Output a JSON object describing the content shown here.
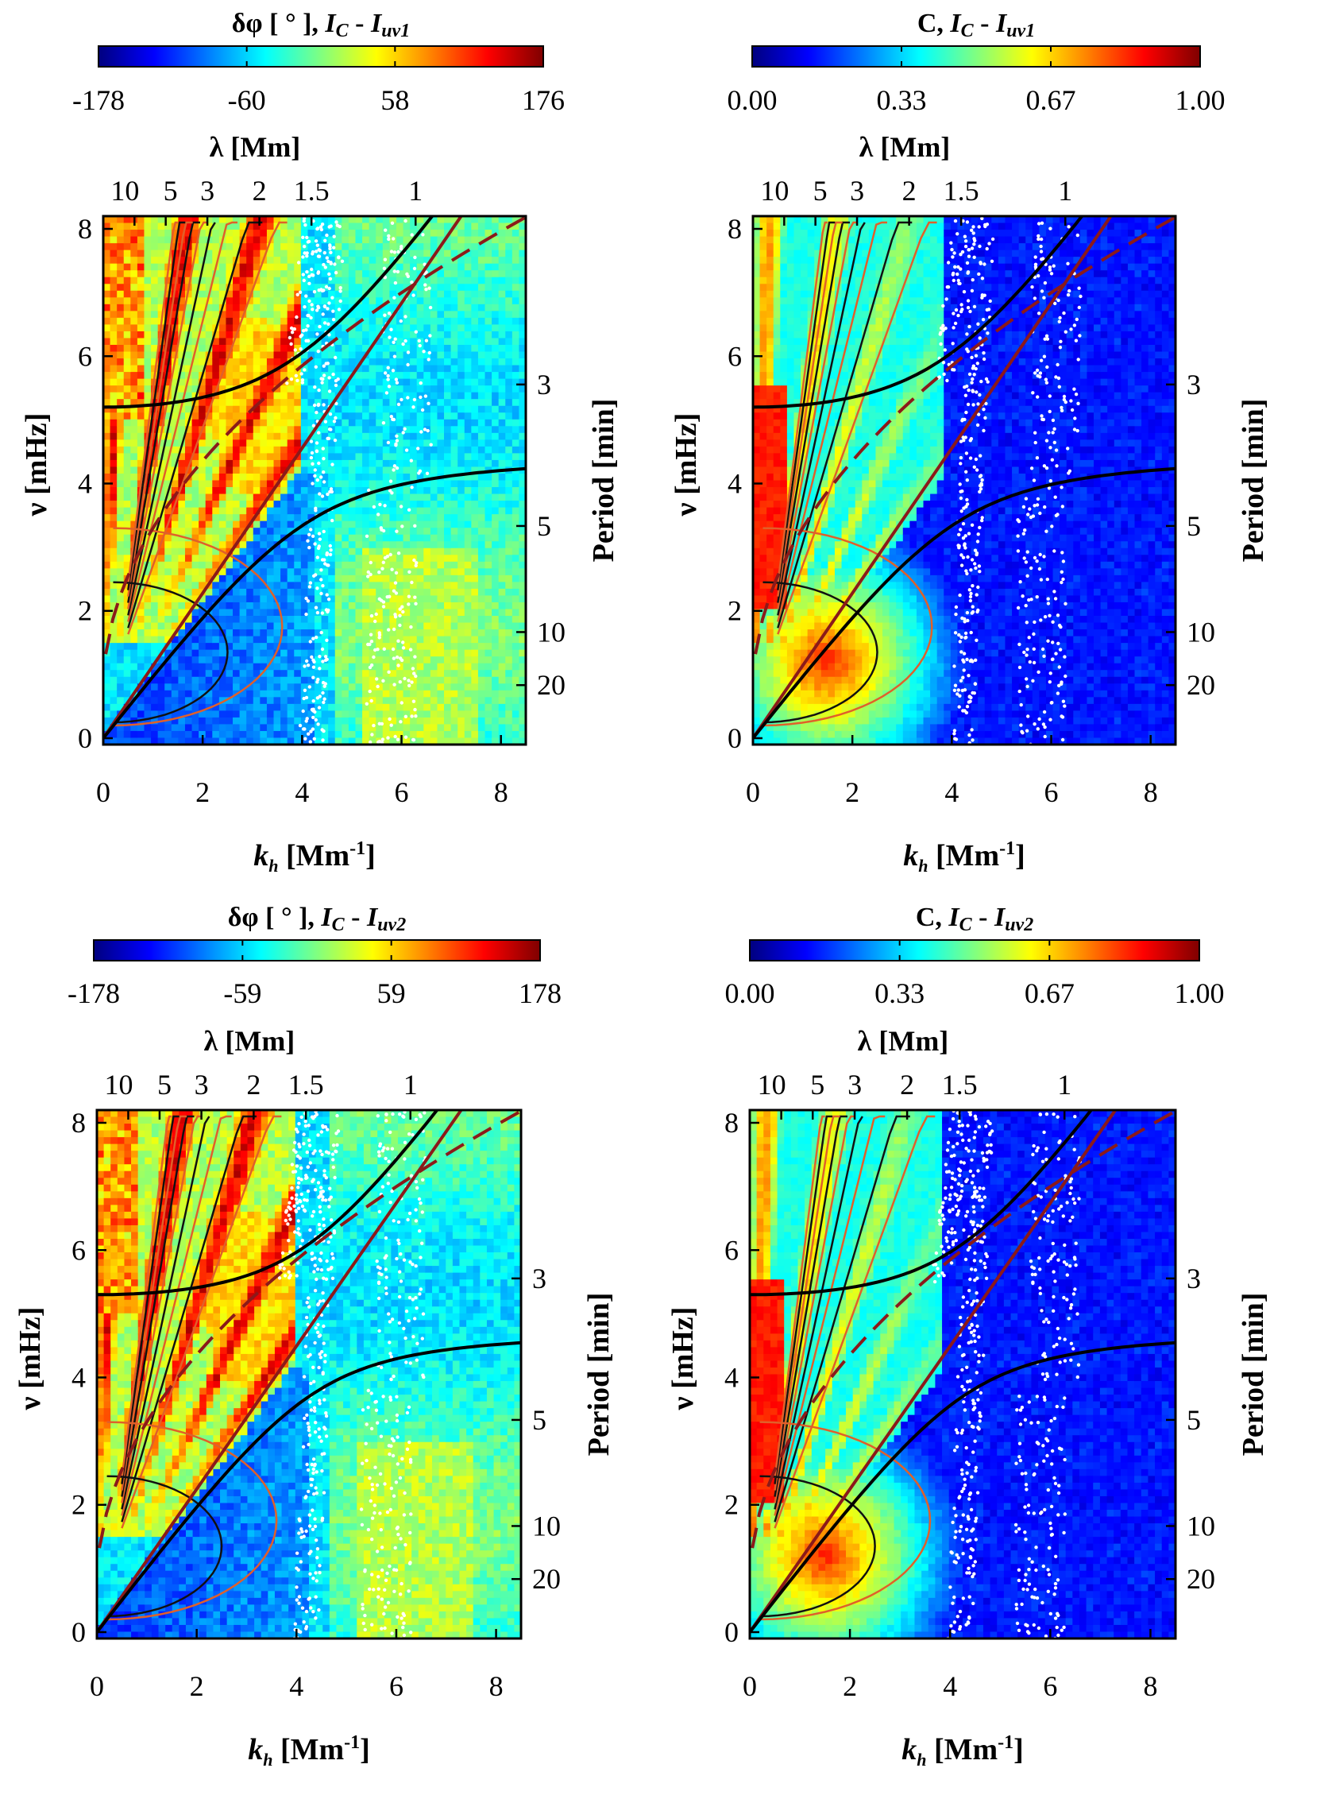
{
  "figure": {
    "description_panels": 4
  },
  "colors": {
    "jet_stops": [
      "#00007f",
      "#0000ff",
      "#0080ff",
      "#00ffff",
      "#80ff80",
      "#ffff00",
      "#ff8000",
      "#ff0000",
      "#7f0000"
    ],
    "contour_black": "#111111",
    "contour_orange": "#e0602a",
    "contour_white": "#ffffff",
    "dispersion_black": "#000000",
    "dispersion_red": "#8b1a1a"
  },
  "chart_data": [
    {
      "id": "top-left",
      "type": "heatmap",
      "quantity": "phase",
      "colorbar": {
        "title_main": "δφ [ ° ],",
        "title_pair_base": "I",
        "title_pair_sub1": "C",
        "title_pair_sep": " - ",
        "title_pair_base2": "I",
        "title_pair_sub2": "uv1",
        "ticks": [
          "-178",
          "-60",
          "58",
          "176"
        ],
        "range": [
          -178,
          176
        ]
      },
      "xlabel_base": "k",
      "xlabel_sub": "h",
      "xlabel_unit": "[Mm",
      "xlabel_exp": "-1",
      "xlabel_close": "]",
      "ylabel": "ν [mHz]",
      "toplabel": "λ [Mm]",
      "rightlabel": "Period [min]",
      "xlim": [
        0,
        8.5
      ],
      "ylim": [
        -0.1,
        8.2
      ],
      "xticks": [
        "0",
        "2",
        "4",
        "6",
        "8"
      ],
      "yticks": [
        "0",
        "2",
        "4",
        "6",
        "8"
      ],
      "lambda_ticks": [
        "10",
        "5",
        "3",
        "2",
        "1.5",
        "1"
      ],
      "lambda_values": [
        10,
        5,
        3,
        2,
        1.5,
        1
      ],
      "period_ticks": [
        "3",
        "5",
        "10",
        "20"
      ],
      "period_values": [
        3,
        5,
        10,
        20
      ],
      "lamb_line_top": [
        7.2,
        8.2
      ],
      "acoustic_cutoff": 5.2,
      "buoyancy_freq": 4.55
    },
    {
      "id": "top-right",
      "type": "heatmap",
      "quantity": "coherence",
      "colorbar": {
        "title_main": "C,",
        "title_pair_base": "I",
        "title_pair_sub1": "C",
        "title_pair_sep": " - ",
        "title_pair_base2": "I",
        "title_pair_sub2": "uv1",
        "ticks": [
          "0.00",
          "0.33",
          "0.67",
          "1.00"
        ],
        "range": [
          0,
          1
        ]
      },
      "xlabel_base": "k",
      "xlabel_sub": "h",
      "xlabel_unit": "[Mm",
      "xlabel_exp": "-1",
      "xlabel_close": "]",
      "ylabel": "ν [mHz]",
      "toplabel": "λ [Mm]",
      "rightlabel": "Period [min]",
      "xlim": [
        0,
        8.5
      ],
      "ylim": [
        -0.1,
        8.2
      ],
      "xticks": [
        "0",
        "2",
        "4",
        "6",
        "8"
      ],
      "yticks": [
        "0",
        "2",
        "4",
        "6",
        "8"
      ],
      "lambda_ticks": [
        "10",
        "5",
        "3",
        "2",
        "1.5",
        "1"
      ],
      "lambda_values": [
        10,
        5,
        3,
        2,
        1.5,
        1
      ],
      "period_ticks": [
        "3",
        "5",
        "10",
        "20"
      ],
      "period_values": [
        3,
        5,
        10,
        20
      ],
      "lamb_line_top": [
        7.2,
        8.2
      ],
      "acoustic_cutoff": 5.2,
      "buoyancy_freq": 4.55
    },
    {
      "id": "bottom-left",
      "type": "heatmap",
      "quantity": "phase",
      "colorbar": {
        "title_main": "δφ [ ° ],",
        "title_pair_base": "I",
        "title_pair_sub1": "C",
        "title_pair_sep": " - ",
        "title_pair_base2": "I",
        "title_pair_sub2": "uv2",
        "ticks": [
          "-178",
          "-59",
          "59",
          "178"
        ],
        "range": [
          -178,
          178
        ]
      },
      "xlabel_base": "k",
      "xlabel_sub": "h",
      "xlabel_unit": "[Mm",
      "xlabel_exp": "-1",
      "xlabel_close": "]",
      "ylabel": "ν [mHz]",
      "toplabel": "λ [Mm]",
      "rightlabel": "Period [min]",
      "xlim": [
        0,
        8.5
      ],
      "ylim": [
        -0.1,
        8.2
      ],
      "xticks": [
        "0",
        "2",
        "4",
        "6",
        "8"
      ],
      "yticks": [
        "0",
        "2",
        "4",
        "6",
        "8"
      ],
      "lambda_ticks": [
        "10",
        "5",
        "3",
        "2",
        "1.5",
        "1"
      ],
      "lambda_values": [
        10,
        5,
        3,
        2,
        1.5,
        1
      ],
      "period_ticks": [
        "3",
        "5",
        "10",
        "20"
      ],
      "period_values": [
        3,
        5,
        10,
        20
      ],
      "lamb_line_top": [
        7.3,
        8.2
      ],
      "acoustic_cutoff": 5.3,
      "buoyancy_freq": 4.85
    },
    {
      "id": "bottom-right",
      "type": "heatmap",
      "quantity": "coherence",
      "colorbar": {
        "title_main": "C,",
        "title_pair_base": "I",
        "title_pair_sub1": "C",
        "title_pair_sep": " - ",
        "title_pair_base2": "I",
        "title_pair_sub2": "uv2",
        "ticks": [
          "0.00",
          "0.33",
          "0.67",
          "1.00"
        ],
        "range": [
          0,
          1
        ]
      },
      "xlabel_base": "k",
      "xlabel_sub": "h",
      "xlabel_unit": "[Mm",
      "xlabel_exp": "-1",
      "xlabel_close": "]",
      "ylabel": "ν [mHz]",
      "toplabel": "λ [Mm]",
      "rightlabel": "Period [min]",
      "xlim": [
        0,
        8.5
      ],
      "ylim": [
        -0.1,
        8.2
      ],
      "xticks": [
        "0",
        "2",
        "4",
        "6",
        "8"
      ],
      "yticks": [
        "0",
        "2",
        "4",
        "6",
        "8"
      ],
      "lambda_ticks": [
        "10",
        "5",
        "3",
        "2",
        "1.5",
        "1"
      ],
      "lambda_values": [
        10,
        5,
        3,
        2,
        1.5,
        1
      ],
      "period_ticks": [
        "3",
        "5",
        "10",
        "20"
      ],
      "period_values": [
        3,
        5,
        10,
        20
      ],
      "lamb_line_top": [
        7.3,
        8.2
      ],
      "acoustic_cutoff": 5.3,
      "buoyancy_freq": 4.85
    }
  ]
}
